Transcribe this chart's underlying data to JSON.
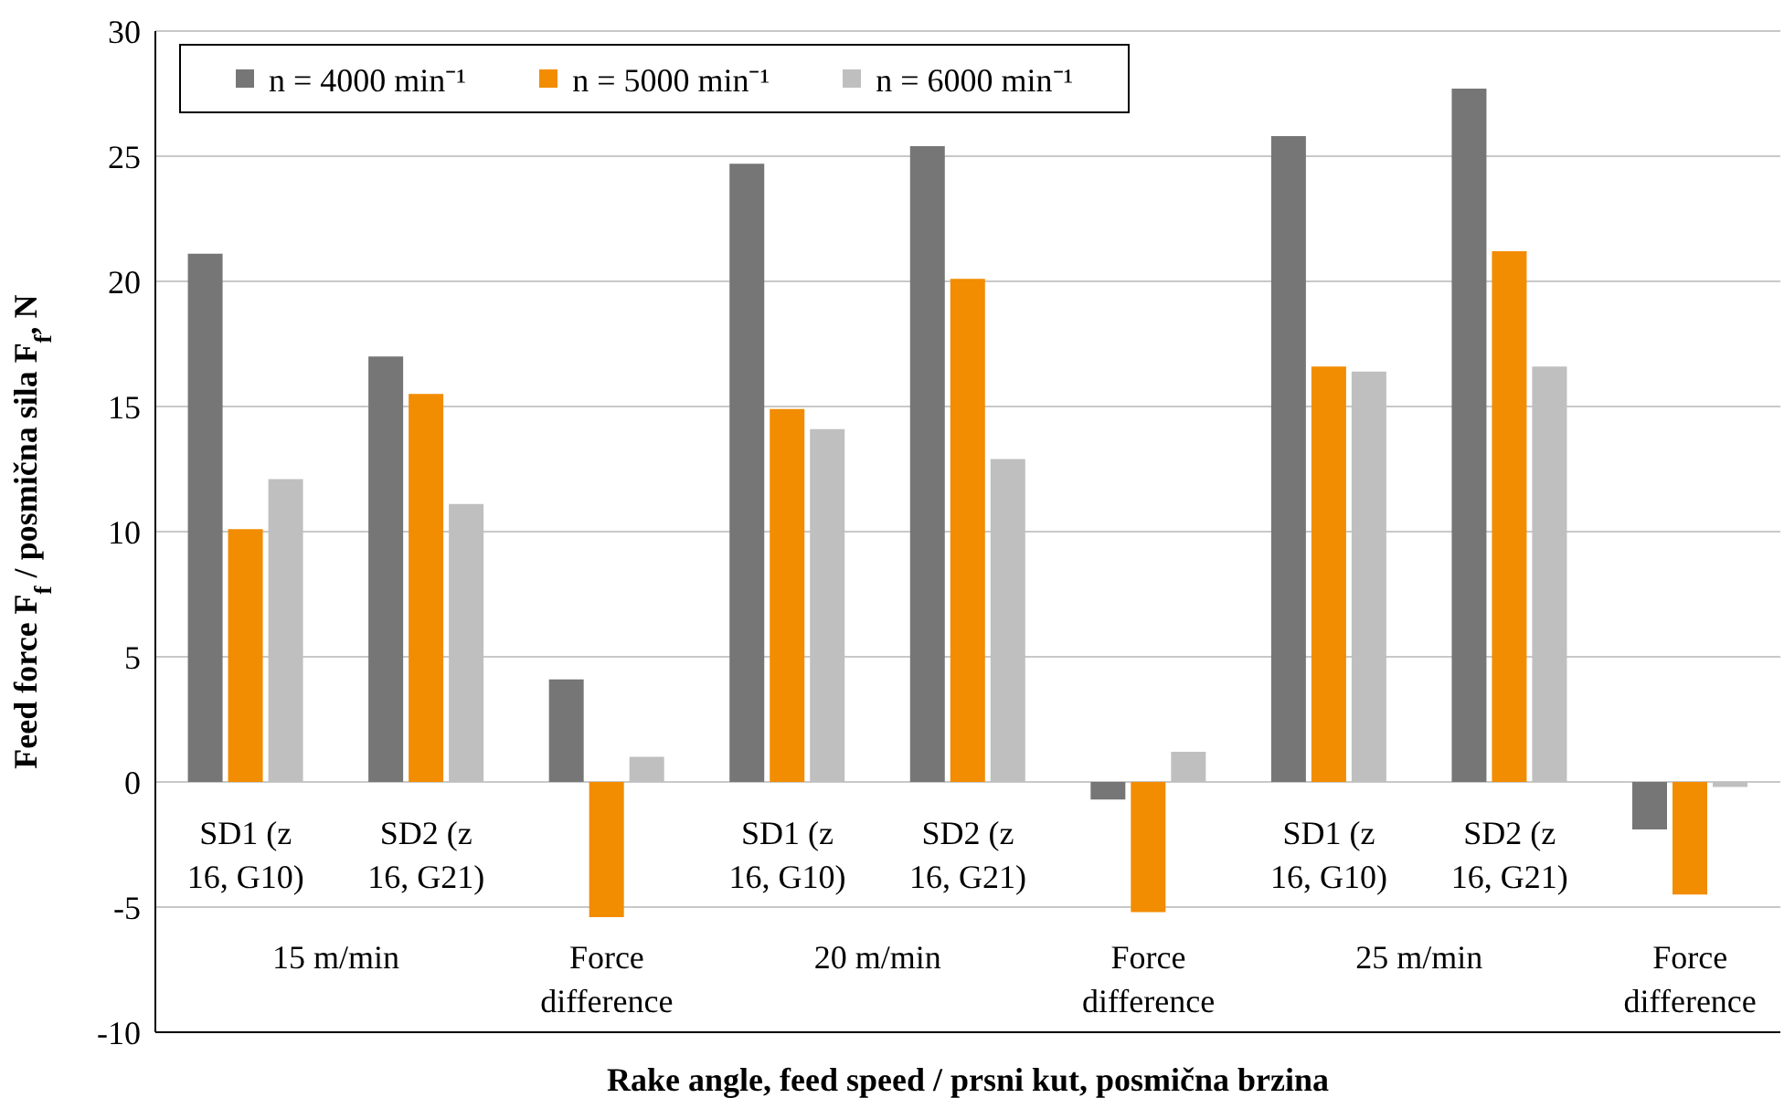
{
  "chart_data": {
    "type": "bar",
    "ylabel": "Feed force F$_{f}$ / posmična sila F$_{f}$, N",
    "xlabel": "Rake angle, feed speed / prsni kut, posmična brzina",
    "categories": [
      "SD1 (z 16, G10)",
      "SD2 (z 16, G21)",
      "Force difference",
      "SD1 (z 16, G10)",
      "SD2 (z 16, G21)",
      "Force difference",
      "SD1 (z 16, G10)",
      "SD2 (z 16, G21)",
      "Force difference"
    ],
    "series": [
      {
        "name": "n = 4000 min⁻¹",
        "color": "#767676",
        "values": [
          21.1,
          17.0,
          4.1,
          24.7,
          25.4,
          -0.7,
          25.8,
          27.7,
          -1.9
        ]
      },
      {
        "name": "n = 5000 min⁻¹",
        "color": "#f28c00",
        "values": [
          10.1,
          15.5,
          -5.4,
          14.9,
          20.1,
          -5.2,
          16.6,
          21.2,
          -4.5
        ]
      },
      {
        "name": "n = 6000 min⁻¹",
        "color": "#bfbfbf",
        "values": [
          12.1,
          11.1,
          1.0,
          14.1,
          12.9,
          1.2,
          16.4,
          16.6,
          -0.2
        ]
      }
    ],
    "annotations": [
      "15 m/min",
      "20 m/min",
      "25 m/min"
    ],
    "ylim": [
      -10,
      30
    ],
    "yticks": [
      -10,
      -5,
      0,
      5,
      10,
      15,
      20,
      25,
      30
    ],
    "grid": "y",
    "legend": "top left"
  }
}
